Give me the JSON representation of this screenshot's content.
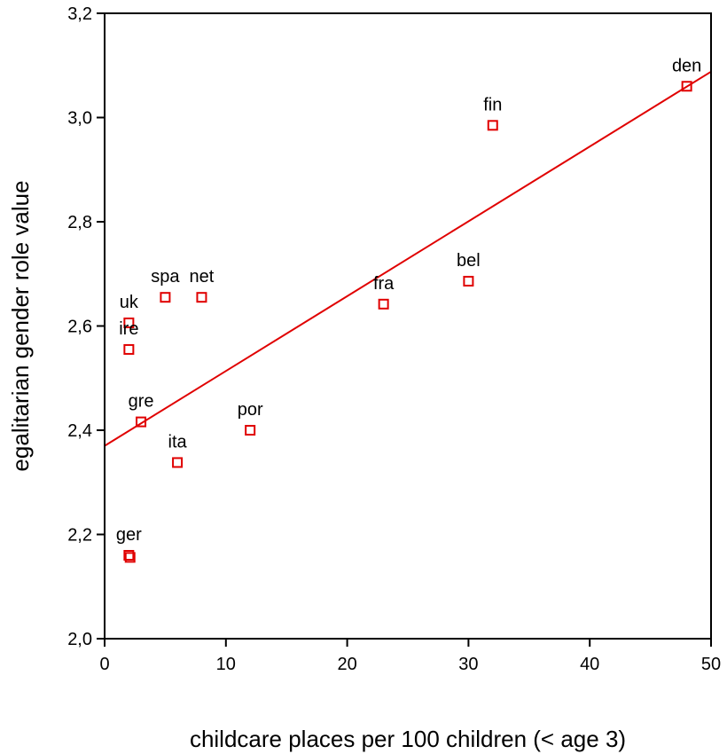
{
  "chart_data": {
    "type": "scatter",
    "title": "",
    "xlabel": "childcare places per 100 children (< age 3)",
    "ylabel": "egalitarian gender role value",
    "xlim": [
      0,
      50
    ],
    "ylim": [
      2.0,
      3.2
    ],
    "x_ticks": [
      0,
      10,
      20,
      30,
      40,
      50
    ],
    "x_tick_labels": [
      "0",
      "10",
      "20",
      "30",
      "40",
      "50"
    ],
    "y_ticks": [
      2.0,
      2.2,
      2.4,
      2.6,
      2.8,
      3.0,
      3.2
    ],
    "y_tick_labels": [
      "2,0",
      "2,2",
      "2,4",
      "2,6",
      "2,8",
      "3,0",
      "3,2"
    ],
    "grid": false,
    "marker_color": "#e00000",
    "line_color": "#e00000",
    "points": [
      {
        "label": "den",
        "x": 48.0,
        "y": 3.06
      },
      {
        "label": "fin",
        "x": 32.0,
        "y": 2.985
      },
      {
        "label": "bel",
        "x": 30.0,
        "y": 2.686
      },
      {
        "label": "fra",
        "x": 23.0,
        "y": 2.642
      },
      {
        "label": "spa",
        "x": 5.0,
        "y": 2.655
      },
      {
        "label": "net",
        "x": 8.0,
        "y": 2.655
      },
      {
        "label": "uk",
        "x": 2.0,
        "y": 2.606
      },
      {
        "label": "ire",
        "x": 2.0,
        "y": 2.555
      },
      {
        "label": "gre",
        "x": 3.0,
        "y": 2.416
      },
      {
        "label": "por",
        "x": 12.0,
        "y": 2.4
      },
      {
        "label": "ita",
        "x": 6.0,
        "y": 2.338
      },
      {
        "label": "ger",
        "x": 2.0,
        "y": 2.16
      },
      {
        "label": "",
        "x": 2.1,
        "y": 2.156
      }
    ],
    "fit_line": {
      "x": [
        0,
        50
      ],
      "y": [
        2.37,
        3.088
      ]
    }
  }
}
